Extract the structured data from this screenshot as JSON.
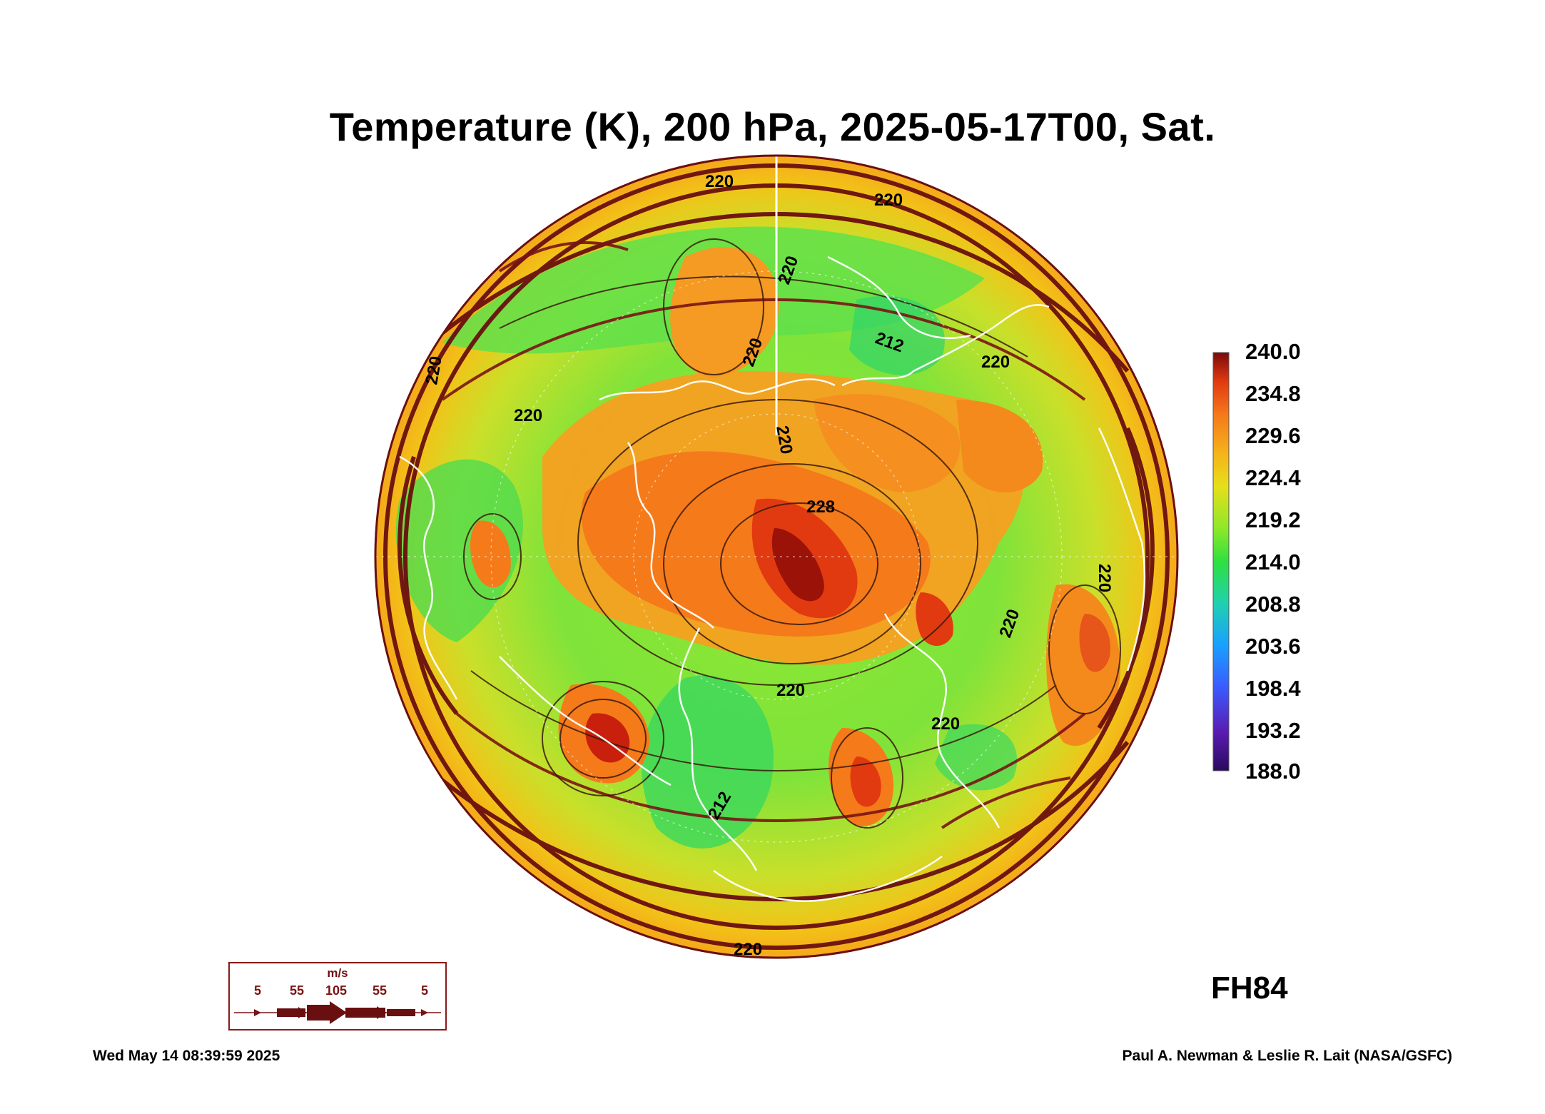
{
  "title": "Temperature (K), 200 hPa, 2025-05-17T00, Sat.",
  "colorbar": {
    "labels": [
      "240.0",
      "234.8",
      "229.6",
      "224.4",
      "219.2",
      "214.0",
      "208.8",
      "203.6",
      "198.4",
      "193.2",
      "188.0"
    ],
    "range": [
      188.0,
      240.0
    ],
    "colors": [
      "#2a0a5e",
      "#5a1ab0",
      "#3b5bff",
      "#1aa0ff",
      "#1fd0b0",
      "#2ee040",
      "#8ee82a",
      "#e6df1a",
      "#f5b21a",
      "#f57a1a",
      "#e23a10",
      "#7a0a0a"
    ]
  },
  "contour_labels": [
    "220",
    "220",
    "220",
    "220",
    "212",
    "220",
    "220",
    "220",
    "220",
    "228",
    "220",
    "220",
    "220",
    "212",
    "220",
    "220"
  ],
  "forecast_hour": "FH84",
  "wind_legend": {
    "unit": "m/s",
    "speeds": [
      "5",
      "55",
      "105",
      "55",
      "5"
    ]
  },
  "footer": {
    "timestamp": "Wed May 14 08:39:59 2025",
    "credit": "Paul A. Newman & Leslie R. Lait (NASA/GSFC)"
  },
  "colors": {
    "streamline": "#6a0f0f",
    "coastline": "#ffffff",
    "contour": "#3a1a0a"
  }
}
